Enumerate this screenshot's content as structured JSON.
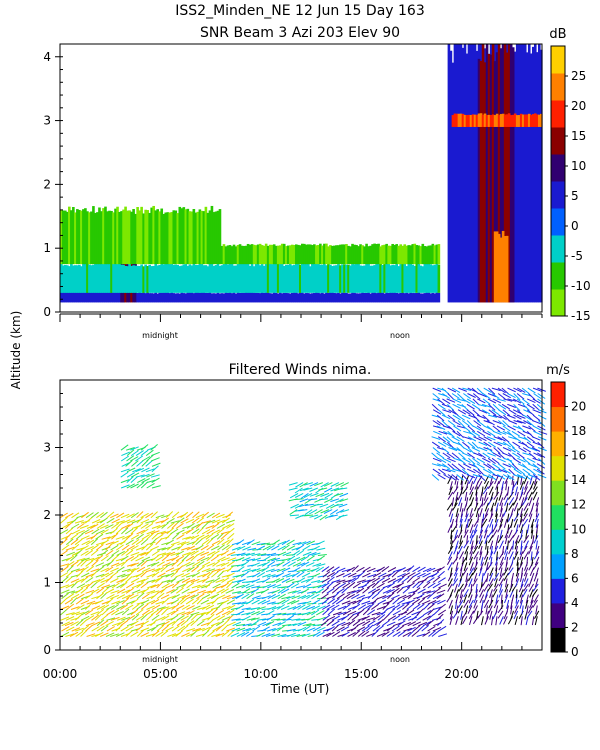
{
  "header": {
    "line1": "ISS2_Minden_NE  12 Jun 15 Day 163",
    "line2": "SNR Beam 3 Azi 203 Elev 90"
  },
  "shared": {
    "ylabel": "Altitude (km)",
    "xlabel": "Time (UT)",
    "midnight_label": "midnight",
    "noon_label": "noon"
  },
  "chart_data": [
    {
      "type": "heatmap",
      "title": "SNR Beam 3 Azi 203 Elev 90",
      "ylabel": "Altitude (km)",
      "xlim": [
        0,
        24
      ],
      "ylim": [
        0,
        4.2
      ],
      "yticks": [
        0,
        1,
        2,
        3,
        4
      ],
      "colorbar": {
        "unit": "dB",
        "range": [
          -15,
          30
        ],
        "ticks": [
          -15,
          -10,
          -5,
          0,
          5,
          10,
          15,
          20,
          25
        ],
        "colors": [
          "#7de800",
          "#27c800",
          "#00d0c8",
          "#0060ff",
          "#1a1ad0",
          "#300070",
          "#8a0000",
          "#ff2000",
          "#ff8000",
          "#ffd000"
        ]
      },
      "regions": [
        {
          "t": [
            0,
            3.2
          ],
          "z": [
            0.15,
            0.5
          ],
          "db": 5
        },
        {
          "t": [
            3.0,
            3.8
          ],
          "z": [
            0.15,
            0.9
          ],
          "db": 12
        },
        {
          "t": [
            3.8,
            18.9
          ],
          "z": [
            0.15,
            0.3
          ],
          "db": 5
        },
        {
          "t": [
            0,
            18.9
          ],
          "z": [
            0.3,
            0.75
          ],
          "db": -5
        },
        {
          "t": [
            0,
            8
          ],
          "z": [
            0.75,
            1.6
          ],
          "db": -10
        },
        {
          "t": [
            8,
            18.9
          ],
          "z": [
            0.75,
            1.05
          ],
          "db": -10
        },
        {
          "t": [
            19.3,
            24
          ],
          "z": [
            0.15,
            4.2
          ],
          "db": 5
        },
        {
          "t": [
            20.8,
            22.6
          ],
          "z": [
            0.15,
            4.2
          ],
          "db": 12
        },
        {
          "t": [
            21.6,
            22.3
          ],
          "z": [
            0.15,
            1.2
          ],
          "db": 22
        },
        {
          "t": [
            19.5,
            24
          ],
          "z": [
            2.9,
            3.1
          ],
          "db": 20
        }
      ]
    },
    {
      "type": "barbs",
      "title": "Filtered Winds nima.",
      "xlabel": "Time (UT)",
      "ylabel": "Altitude (km)",
      "xlim": [
        0,
        24
      ],
      "ylim": [
        0,
        4
      ],
      "xticks": [
        "00:00",
        "05:00",
        "10:00",
        "15:00",
        "20:00"
      ],
      "xtick_values": [
        0,
        5,
        10,
        15,
        20
      ],
      "yticks": [
        0,
        1,
        2,
        3
      ],
      "colorbar": {
        "unit": "m/s",
        "range": [
          0,
          22
        ],
        "ticks": [
          0,
          2,
          4,
          6,
          8,
          10,
          12,
          14,
          16,
          18,
          20
        ],
        "colors": [
          "#000000",
          "#400080",
          "#2020e0",
          "#00a0ff",
          "#00d0d0",
          "#20e060",
          "#80e020",
          "#e0e000",
          "#ffb000",
          "#ff7000",
          "#ff2000"
        ]
      },
      "regions": [
        {
          "t": [
            0,
            8.5
          ],
          "z": [
            0.2,
            2.0
          ],
          "speed": 15,
          "dir": 60
        },
        {
          "t": [
            8.5,
            13
          ],
          "z": [
            0.2,
            1.6
          ],
          "speed": 9,
          "dir": 70
        },
        {
          "t": [
            13,
            18.8
          ],
          "z": [
            0.2,
            1.2
          ],
          "speed": 4,
          "dir": 60
        },
        {
          "t": [
            11.8,
            14.5
          ],
          "z": [
            2.0,
            2.5
          ],
          "speed": 9,
          "dir": 250
        },
        {
          "t": [
            19.5,
            24
          ],
          "z": [
            0.5,
            2.6
          ],
          "speed": 3,
          "dir": 200
        },
        {
          "t": [
            18.5,
            24
          ],
          "z": [
            2.6,
            3.9
          ],
          "speed": 6,
          "dir": 120
        },
        {
          "t": [
            3.0,
            4.6
          ],
          "z": [
            2.4,
            3.0
          ],
          "speed": 10,
          "dir": 60
        }
      ]
    }
  ]
}
